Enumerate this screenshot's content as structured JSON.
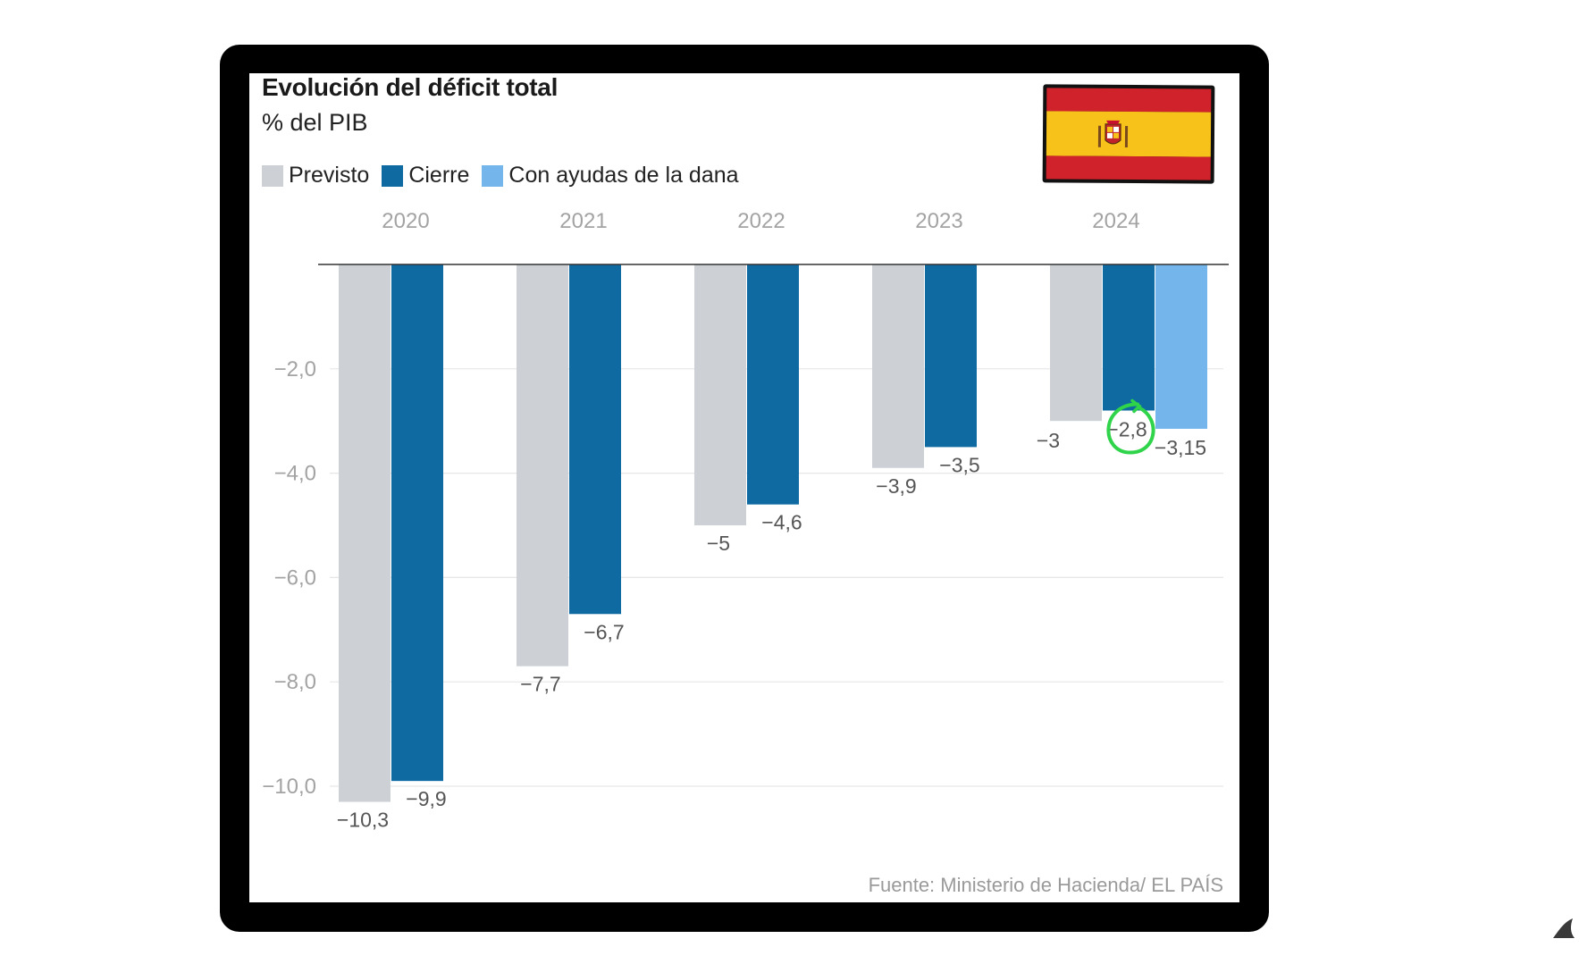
{
  "header": {
    "title": "Evolución del déficit total",
    "subtitle": "% del PIB"
  },
  "legend": [
    {
      "label": "Previsto",
      "color": "#cdd1d6"
    },
    {
      "label": "Cierre",
      "color": "#0e6aa0"
    },
    {
      "label": "Con ayudas de la dana",
      "color": "#74b6ec"
    }
  ],
  "source": "Fuente: Ministerio de Hacienda/ EL PAÍS",
  "colors": {
    "previsto": "#cdd1d6",
    "cierre": "#0e6aa0",
    "dana": "#74b6ec",
    "highlight": "#2fd44a",
    "axis_text": "#a3a3a3",
    "label_text": "#555555"
  },
  "icons": {
    "flag": "spain-flag-icon",
    "corner": "fin-icon"
  },
  "chart_data": {
    "type": "bar",
    "title": "Evolución del déficit total",
    "subtitle": "% del PIB",
    "categories": [
      "2020",
      "2021",
      "2022",
      "2023",
      "2024"
    ],
    "series": [
      {
        "name": "Previsto",
        "values": [
          -10.3,
          -7.7,
          -5,
          -3.9,
          -3
        ],
        "labels": [
          "−10,3",
          "−7,7",
          "−5",
          "−3,9",
          "−3"
        ]
      },
      {
        "name": "Cierre",
        "values": [
          -9.9,
          -6.7,
          -4.6,
          -3.5,
          -2.8
        ],
        "labels": [
          "−9,9",
          "−6,7",
          "−4,6",
          "−3,5",
          "−2,8"
        ]
      },
      {
        "name": "Con ayudas de la dana",
        "values": [
          null,
          null,
          null,
          null,
          -3.15
        ],
        "labels": [
          null,
          null,
          null,
          null,
          "−3,15"
        ]
      }
    ],
    "yticks": [
      "−2,0",
      "−4,0",
      "−6,0",
      "−8,0",
      "−10,0"
    ],
    "ytick_values": [
      -2,
      -4,
      -6,
      -8,
      -10
    ],
    "ylim": [
      -11,
      0
    ],
    "grid": true,
    "legend": "top-left",
    "annotation": "−2,8 circled in green"
  }
}
